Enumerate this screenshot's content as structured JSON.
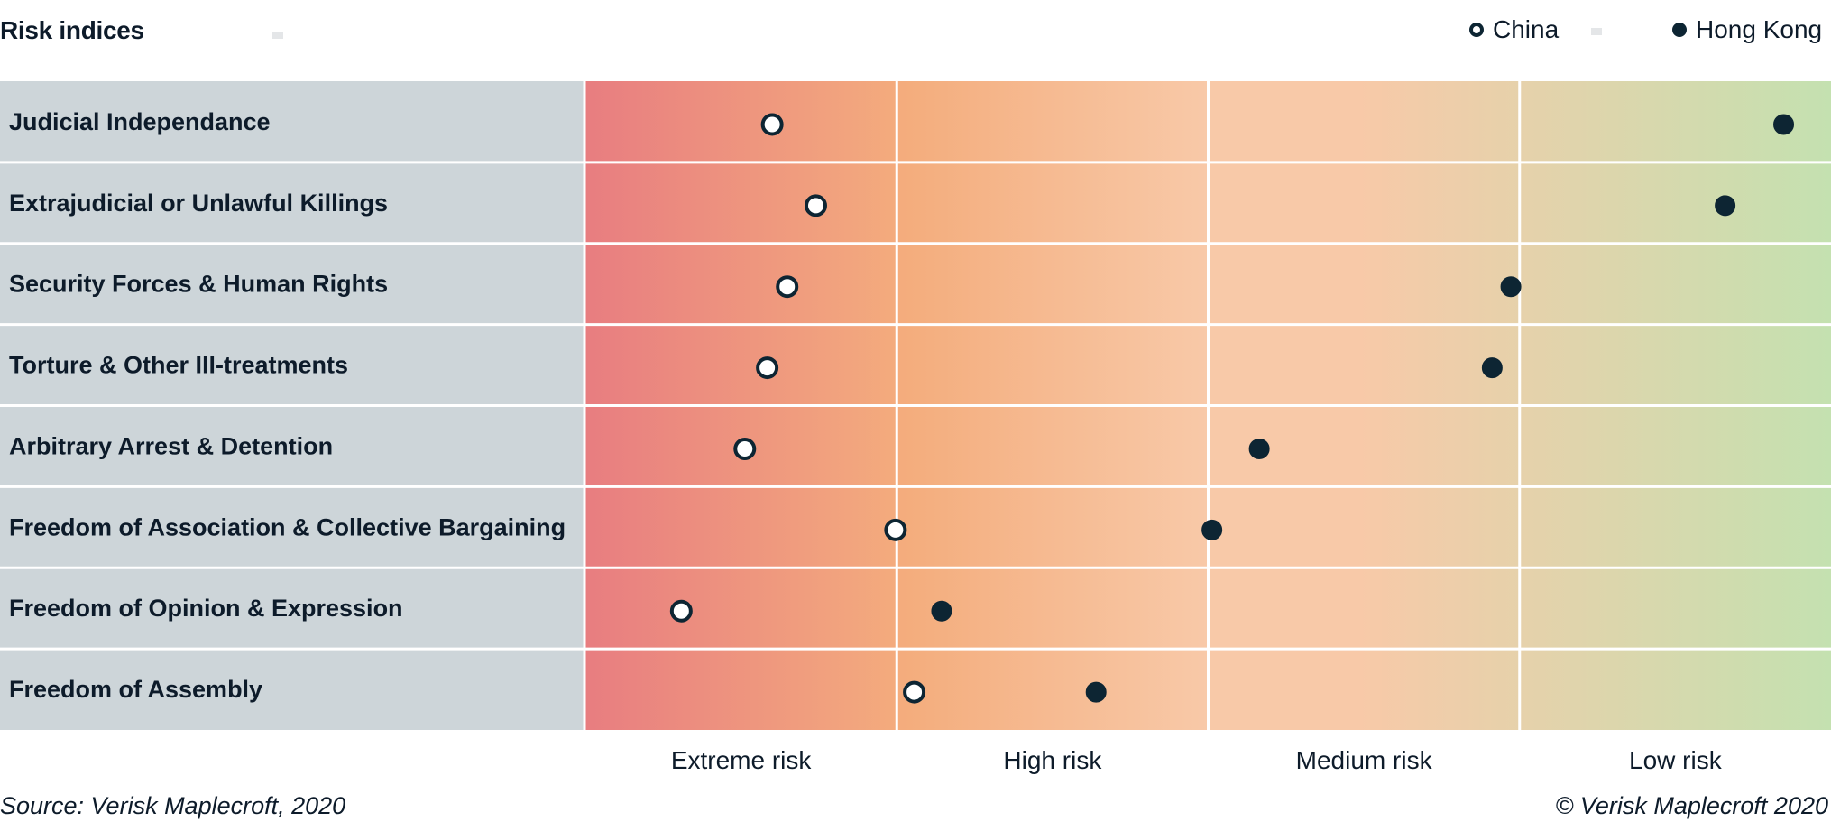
{
  "header": {
    "title": "Risk indices",
    "legend": [
      {
        "name": "China",
        "style": "hollow",
        "fill": "#ffffff",
        "stroke": "#0d2533"
      },
      {
        "name": "Hong Kong",
        "style": "solid",
        "fill": "#0d2533",
        "stroke": "#0d2533"
      }
    ]
  },
  "footer": {
    "source": "Source: Verisk Maplecroft, 2020",
    "copyright": "© Verisk Maplecroft 2020"
  },
  "colors": {
    "label_bg": "#cdd5d9",
    "extreme": "#e87d80",
    "high": "#f4ad7d",
    "medium": "#f8c9a8",
    "low": "#c4e1b0",
    "marker": "#0d2533"
  },
  "chart_data": {
    "type": "scatter",
    "title": "Risk indices",
    "x_axis": {
      "range": [
        0,
        10
      ],
      "bands": [
        {
          "label": "Extreme risk",
          "from": 0,
          "to": 2.5
        },
        {
          "label": "High risk",
          "from": 2.5,
          "to": 5
        },
        {
          "label": "Medium risk",
          "from": 5,
          "to": 7.5
        },
        {
          "label": "Low risk",
          "from": 7.5,
          "to": 10
        }
      ]
    },
    "categories": [
      "Judicial Independance",
      "Extrajudicial or Unlawful Killings",
      "Security Forces & Human Rights",
      "Torture & Other Ill-treatments",
      "Arbitrary Arrest & Detention",
      "Freedom of Association & Collective Bargaining",
      "Freedom of Opinion & Expression",
      "Freedom of Assembly"
    ],
    "series": [
      {
        "name": "China",
        "values": [
          1.5,
          1.85,
          1.62,
          1.46,
          1.28,
          2.49,
          0.77,
          2.64
        ]
      },
      {
        "name": "Hong Kong",
        "values": [
          9.62,
          9.15,
          7.43,
          7.28,
          5.41,
          5.03,
          2.86,
          4.1
        ]
      }
    ]
  }
}
